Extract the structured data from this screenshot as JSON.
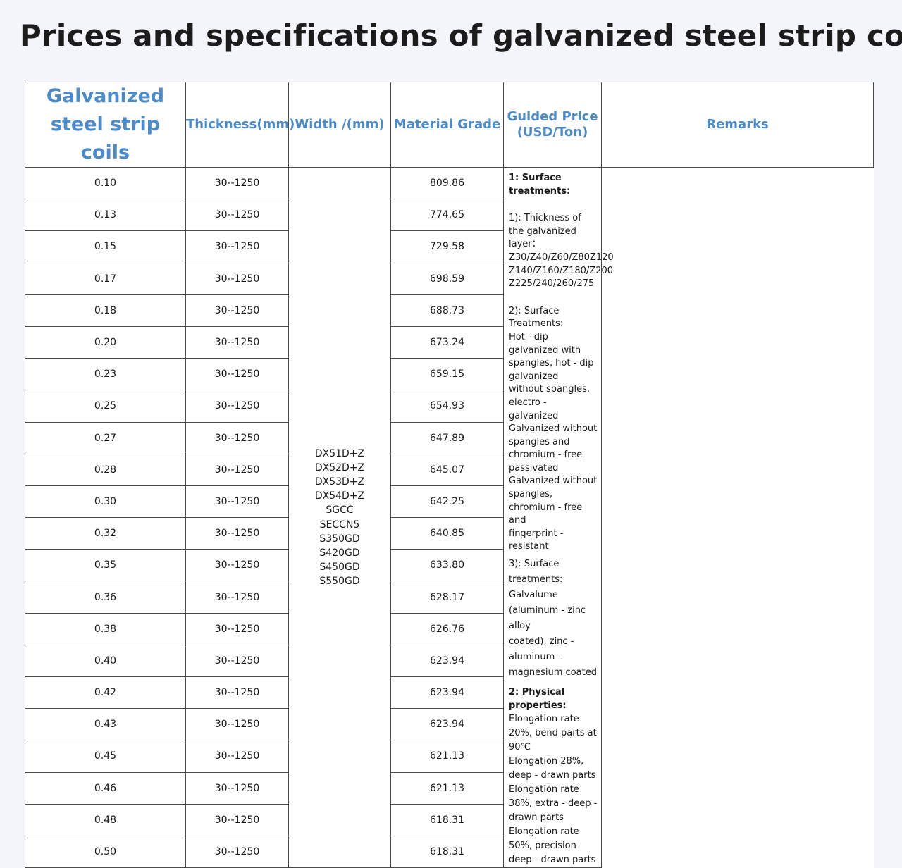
{
  "title": "Prices and specifications of galvanized steel strip coils",
  "header": {
    "thickness": "Thickness(mm)",
    "width": "Width /(mm)",
    "material": "Material Grade",
    "price_line1": "Guided Price",
    "price_line2": "(USD/Ton)",
    "remarks": "Remarks"
  },
  "product_line1": "Galvanized",
  "product_line2": "steel strip coils",
  "rows": [
    {
      "thickness": "0.10",
      "width": "30--1250",
      "price": "809.86"
    },
    {
      "thickness": "0.13",
      "width": "30--1250",
      "price": "774.65"
    },
    {
      "thickness": "0.15",
      "width": "30--1250",
      "price": "729.58"
    },
    {
      "thickness": "0.17",
      "width": "30--1250",
      "price": "698.59"
    },
    {
      "thickness": "0.18",
      "width": "30--1250",
      "price": "688.73"
    },
    {
      "thickness": "0.20",
      "width": "30--1250",
      "price": "673.24"
    },
    {
      "thickness": "0.23",
      "width": "30--1250",
      "price": "659.15"
    },
    {
      "thickness": "0.25",
      "width": "30--1250",
      "price": "654.93"
    },
    {
      "thickness": "0.27",
      "width": "30--1250",
      "price": "647.89"
    },
    {
      "thickness": "0.28",
      "width": "30--1250",
      "price": "645.07"
    },
    {
      "thickness": "0.30",
      "width": "30--1250",
      "price": "642.25"
    },
    {
      "thickness": "0.32",
      "width": "30--1250",
      "price": "640.85"
    },
    {
      "thickness": "0.35",
      "width": "30--1250",
      "price": "633.80"
    },
    {
      "thickness": "0.36",
      "width": "30--1250",
      "price": "628.17"
    },
    {
      "thickness": "0.38",
      "width": "30--1250",
      "price": "626.76"
    },
    {
      "thickness": "0.40",
      "width": "30--1250",
      "price": "623.94"
    },
    {
      "thickness": "0.42",
      "width": "30--1250",
      "price": "623.94"
    },
    {
      "thickness": "0.43",
      "width": "30--1250",
      "price": "623.94"
    },
    {
      "thickness": "0.45",
      "width": "30--1250",
      "price": "621.13"
    },
    {
      "thickness": "0.46",
      "width": "30--1250",
      "price": "621.13"
    },
    {
      "thickness": "0.48",
      "width": "30--1250",
      "price": "618.31"
    },
    {
      "thickness": "0.50",
      "width": "30--1250",
      "price": "618.31"
    }
  ],
  "material_grades": [
    "DX51D+Z",
    "DX52D+Z",
    "DX53D+Z",
    "DX54D+Z",
    "SGCC",
    "SECCN5",
    "S350GD",
    "S420GD",
    "S450GD",
    "S550GD"
  ],
  "remarks": {
    "surface_heading": "1: Surface treatments:",
    "layer_heading": "1): Thickness of the galvanized layer：",
    "layer_lines": [
      "Z30/Z40/Z60/Z80Z120",
      "Z140/Z160/Z180/Z200",
      "Z225/240/260/275"
    ],
    "treatments_heading": "2): Surface Treatments:",
    "treatments_lines": [
      "Hot - dip galvanized with spangles, hot - dip galvanized",
      "without spangles, electro - galvanized",
      "Galvanized without spangles and chromium - free",
      "passivated",
      "Galvanized without spangles, chromium - free and",
      "fingerprint - resistant"
    ],
    "galvalume_lines": [
      "3):   Surface treatments: Galvalume (aluminum - zinc alloy",
      "coated), zinc - aluminum - magnesium coated"
    ],
    "physical_heading": "2: Physical properties:",
    "physical_lines": [
      "Elongation rate 20%, bend parts at 90℃",
      "Elongation 28%, deep - drawn parts",
      "Elongation rate 38%, extra - deep - drawn parts",
      "Elongation rate 50%, precision deep - drawn parts"
    ]
  }
}
